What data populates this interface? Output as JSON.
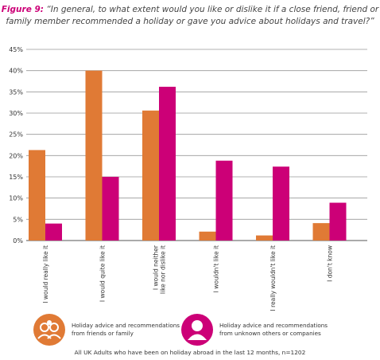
{
  "title": {
    "figure_label": "Figure 9:",
    "text": "“In general, to what extent would you like or dislike it if a close friend, friend or family member recommended a holiday or gave you advice about holidays and travel?”"
  },
  "chart_data": {
    "type": "bar",
    "categories": [
      "I would really like it",
      "I would quite like it",
      "I would neither like nor dislike it",
      "I wouldn't like it",
      "I really wouldn't like it",
      "I don't know"
    ],
    "category_lines": [
      [
        "I would really like it"
      ],
      [
        "I would quite like it"
      ],
      [
        "I would neither",
        "like nor dislike it"
      ],
      [
        "I wouldn't like it"
      ],
      [
        "I really wouldn't like it"
      ],
      [
        "I don't know"
      ]
    ],
    "series": [
      {
        "name": "Holiday advice and recommendations from friends or family",
        "color": "#e07a35",
        "values": [
          21.3,
          40.0,
          30.6,
          2.1,
          1.2,
          4.1
        ]
      },
      {
        "name": "Holiday advice and recommendations from unknown others or companies",
        "color": "#cc0077",
        "values": [
          4.0,
          15.0,
          36.2,
          18.8,
          17.4,
          8.9
        ]
      }
    ],
    "ylim": [
      0,
      45
    ],
    "yticks": [
      "0%",
      "5%",
      "10%",
      "15%",
      "20%",
      "25%",
      "30%",
      "35%",
      "40%",
      "45%"
    ],
    "grid": true,
    "legend": "bottom"
  },
  "legend": [
    {
      "line1": "Holiday advice and recommendations",
      "line2": "from friends or family",
      "color": "#e07a35",
      "icon": "friends-family-icon"
    },
    {
      "line1": "Holiday advice and recommendations",
      "line2": "from unknown others or companies",
      "color": "#cc0077",
      "icon": "unknown-person-icon"
    }
  ],
  "footnote": "All UK Adults who have been on holiday abroad in the last 12 months, n=1202"
}
